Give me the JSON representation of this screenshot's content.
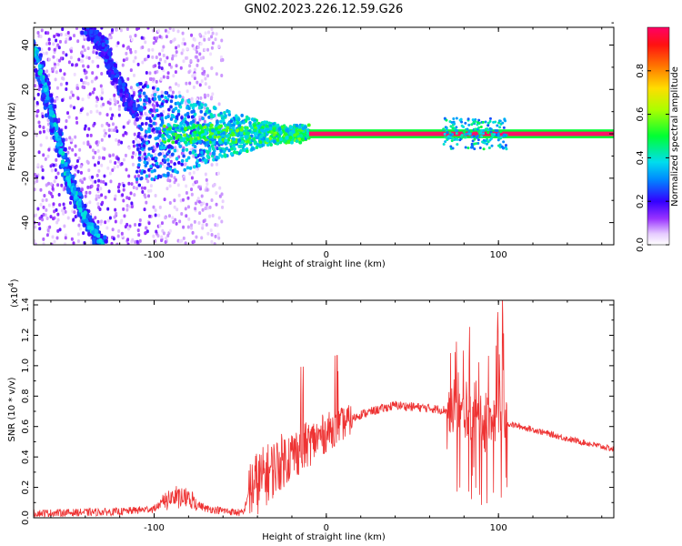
{
  "chart_data": [
    {
      "type": "heatmap",
      "title": "GN02.2023.226.12.59.G26",
      "xlabel": "Height of straight line (km)",
      "ylabel": "Frequency (Hz)",
      "xlim": [
        -170,
        167
      ],
      "ylim": [
        -50,
        48
      ],
      "xticks": [
        -100,
        0,
        100
      ],
      "yticks": [
        -40,
        -20,
        0,
        20,
        40
      ],
      "colorbar": {
        "label": "Normalized spectral amplitude",
        "range": [
          0,
          1
        ],
        "ticks": [
          "0.0",
          "0.2",
          "0.4",
          "0.6",
          "0.8"
        ]
      },
      "features": {
        "steady_tone_hz": 0,
        "steady_tone_from_km": -10,
        "diagonal_branch_1": {
          "x": [
            -170,
            -160,
            -150,
            -140,
            -130
          ],
          "y": [
            40,
            10,
            -20,
            -38,
            -50
          ]
        },
        "diagonal_branch_2": {
          "x": [
            -140,
            -130,
            -120,
            -110
          ],
          "y": [
            48,
            40,
            22,
            8
          ]
        },
        "convergence_zone_km": [
          -110,
          -10
        ]
      }
    },
    {
      "type": "line",
      "title": "",
      "xlabel": "Height of straight line (km)",
      "ylabel": "SNR (10 * v/v)",
      "yscale_label": "(x10",
      "yscale_exp": "4",
      "yscale_close": ")",
      "xlim": [
        -170,
        167
      ],
      "ylim": [
        0,
        1.43
      ],
      "xticks": [
        -100,
        0,
        100
      ],
      "yticks": [
        "0.0",
        "0.2",
        "0.4",
        "0.6",
        "0.8",
        "1.0",
        "1.2",
        "1.4"
      ],
      "color": "#ee3333",
      "series": [
        {
          "name": "",
          "x": [
            -170,
            -120,
            -100,
            -90,
            -80,
            -70,
            -55,
            -48,
            -45,
            -35,
            -25,
            -15,
            0,
            20,
            40,
            60,
            75,
            85,
            95,
            105,
            120,
            140,
            167
          ],
          "y": [
            0.03,
            0.04,
            0.06,
            0.14,
            0.12,
            0.06,
            0.04,
            0.03,
            0.18,
            0.28,
            0.38,
            0.45,
            0.56,
            0.68,
            0.74,
            0.72,
            0.7,
            0.65,
            0.66,
            0.62,
            0.58,
            0.52,
            0.45
          ]
        }
      ]
    }
  ]
}
